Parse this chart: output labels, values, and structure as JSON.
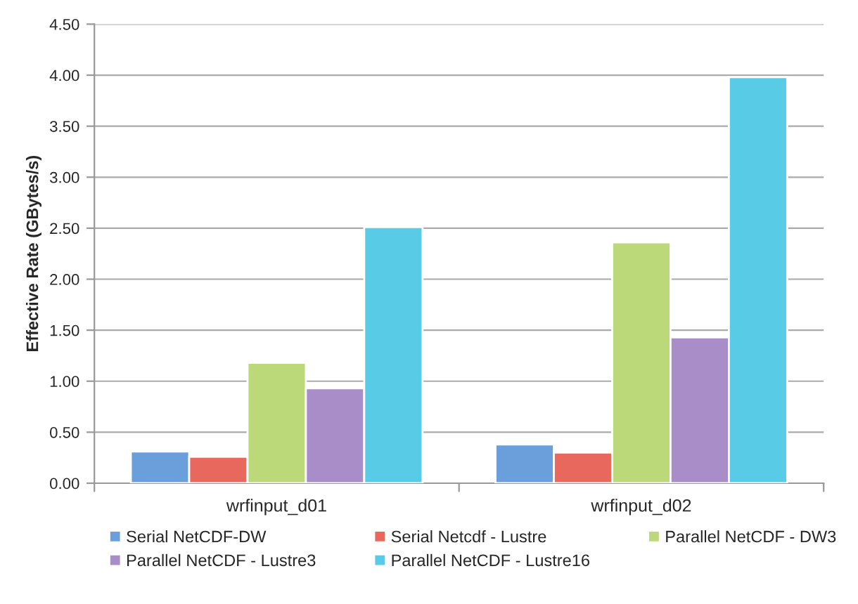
{
  "chart_data": {
    "type": "bar",
    "ylabel": "Effective Rate (GBytes/s)",
    "categories": [
      "wrfinput_d01",
      "wrfinput_d02"
    ],
    "series": [
      {
        "name": "Serial NetCDF-DW",
        "color": "#6a9fdc",
        "values": [
          0.31,
          0.38
        ]
      },
      {
        "name": "Serial Netcdf - Lustre",
        "color": "#e8685e",
        "values": [
          0.26,
          0.3
        ]
      },
      {
        "name": "Parallel NetCDF - DW3",
        "color": "#bcd97a",
        "values": [
          1.18,
          2.36
        ]
      },
      {
        "name": "Parallel NetCDF - Lustre3",
        "color": "#a88dc9",
        "values": [
          0.93,
          1.43
        ]
      },
      {
        "name": "Parallel NetCDF - Lustre16",
        "color": "#58cbe6",
        "values": [
          2.51,
          3.98
        ]
      }
    ],
    "ylim": [
      0,
      4.5
    ],
    "yticks": [
      {
        "value": 0,
        "label": "0.00"
      },
      {
        "value": 0.5,
        "label": "0.50"
      },
      {
        "value": 1,
        "label": "1.00"
      },
      {
        "value": 1.5,
        "label": "1.50"
      },
      {
        "value": 2,
        "label": "2.00"
      },
      {
        "value": 2.5,
        "label": "2.50"
      },
      {
        "value": 3,
        "label": "3.00"
      },
      {
        "value": 3.5,
        "label": "3.50"
      },
      {
        "value": 4,
        "label": "4.00"
      },
      {
        "value": 4.5,
        "label": "4.50"
      }
    ],
    "grid": "y",
    "legend": "bottom"
  }
}
